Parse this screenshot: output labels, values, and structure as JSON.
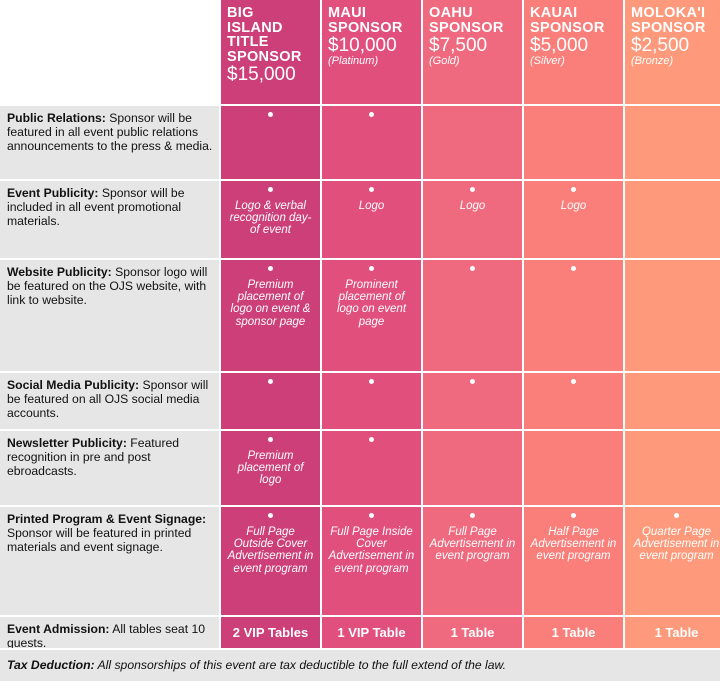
{
  "tiers": [
    {
      "name_lines": [
        "BIG",
        "ISLAND",
        "TITLE",
        "SPONSOR"
      ],
      "amount": "$15,000",
      "tier_label": ""
    },
    {
      "name_lines": [
        "MAUI",
        "SPONSOR"
      ],
      "amount": "$10,000",
      "tier_label": "(Platinum)"
    },
    {
      "name_lines": [
        "OAHU",
        "SPONSOR"
      ],
      "amount": "$7,500",
      "tier_label": "(Gold)"
    },
    {
      "name_lines": [
        "KAUAI",
        "SPONSOR"
      ],
      "amount": "$5,000",
      "tier_label": "(Silver)"
    },
    {
      "name_lines": [
        "MOLOKA'I",
        "SPONSOR"
      ],
      "amount": "$2,500",
      "tier_label": "(Bronze)"
    }
  ],
  "tier_colors": [
    "#cd3f78",
    "#e14f7c",
    "#f06a7f",
    "#fa7f7b",
    "#fe9a7b"
  ],
  "rows": [
    {
      "title": "Public Relations:",
      "desc": "Sponsor will be featured in all event public relations announcements to the press & media.",
      "cells": [
        {
          "dot": true,
          "text": ""
        },
        {
          "dot": true,
          "text": ""
        },
        {
          "dot": false,
          "text": ""
        },
        {
          "dot": false,
          "text": ""
        },
        {
          "dot": false,
          "text": ""
        }
      ]
    },
    {
      "title": "Event Publicity:",
      "desc": "Sponsor will be included in all event promotional materials.",
      "cells": [
        {
          "dot": true,
          "text": "Logo & verbal recognition day-of event"
        },
        {
          "dot": true,
          "text": "Logo"
        },
        {
          "dot": true,
          "text": "Logo"
        },
        {
          "dot": true,
          "text": "Logo"
        },
        {
          "dot": false,
          "text": ""
        }
      ]
    },
    {
      "title": "Website Publicity:",
      "desc": "Sponsor logo will be featured on the OJS website, with link to website.",
      "cells": [
        {
          "dot": true,
          "text": "Premium placement of logo on event & sponsor page"
        },
        {
          "dot": true,
          "text": "Prominent placement of logo on event page"
        },
        {
          "dot": true,
          "text": ""
        },
        {
          "dot": true,
          "text": ""
        },
        {
          "dot": false,
          "text": ""
        }
      ]
    },
    {
      "title": "Social Media Publicity:",
      "desc": "Sponsor will be featured on all OJS social media accounts.",
      "cells": [
        {
          "dot": true,
          "text": ""
        },
        {
          "dot": true,
          "text": ""
        },
        {
          "dot": true,
          "text": ""
        },
        {
          "dot": true,
          "text": ""
        },
        {
          "dot": false,
          "text": ""
        }
      ]
    },
    {
      "title": "Newsletter Publicity:",
      "desc": "Featured recognition in pre and post ebroadcasts.",
      "cells": [
        {
          "dot": true,
          "text": "Premium placement of logo"
        },
        {
          "dot": true,
          "text": ""
        },
        {
          "dot": false,
          "text": ""
        },
        {
          "dot": false,
          "text": ""
        },
        {
          "dot": false,
          "text": ""
        }
      ]
    },
    {
      "title": "Printed Program & Event Signage:",
      "desc": "Sponsor will be featured in printed materials and event signage.",
      "cells": [
        {
          "dot": true,
          "text": "Full Page Outside Cover Advertisement in event program"
        },
        {
          "dot": true,
          "text": "Full Page Inside Cover Advertisement in event program"
        },
        {
          "dot": true,
          "text": "Full Page Advertisement in event program"
        },
        {
          "dot": true,
          "text": "Half Page Advertisement in event program"
        },
        {
          "dot": true,
          "text": "Quarter Page Advertisement in event program"
        }
      ]
    }
  ],
  "admission": {
    "title": "Event Admission:",
    "desc": "All tables seat 10 guests.",
    "values": [
      "2 VIP Tables",
      "1 VIP Table",
      "1 Table",
      "1 Table",
      "1 Table"
    ]
  },
  "footer": {
    "title": "Tax Deduction:",
    "desc": "All sponsorships of this event are tax deductible to the full extend of the law."
  }
}
